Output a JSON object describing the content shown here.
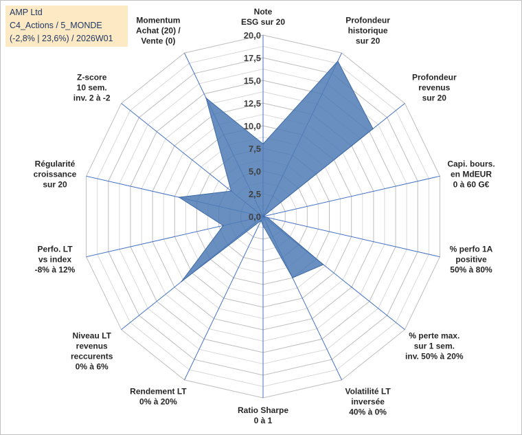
{
  "info": {
    "line1": "AMP Ltd",
    "line2": "C4_Actions / 5_MONDE",
    "line3": "(-2,8% | 23,6%) / 2026W01"
  },
  "colors": {
    "fill": "#4f7bb5",
    "stroke": "#3d6aa6",
    "grid": "#c8c8c8",
    "spoke": "#4472c4"
  },
  "chart_data": {
    "type": "radar",
    "range": [
      0,
      20
    ],
    "ticks": [
      "0,0",
      "2,5",
      "5,0",
      "7,5",
      "10,0",
      "12,5",
      "15,0",
      "17,5",
      "20,0"
    ],
    "axes": [
      [
        "Note",
        "ESG sur 20"
      ],
      [
        "Profondeur",
        "historique",
        "sur 20"
      ],
      [
        "Profondeur",
        "revenus",
        "sur 20"
      ],
      [
        "Capi. bours.",
        "en MdEUR",
        "0 à 60 G€"
      ],
      [
        "% perfo 1A",
        "positive",
        "50% à 80%"
      ],
      [
        "% perte max.",
        "sur 1 sem.",
        "inv. 50% à 20%"
      ],
      [
        "Volatilité LT",
        "inversée",
        "40% à 0%"
      ],
      [
        "Ratio Sharpe",
        "0 à 1"
      ],
      [
        "Rendement LT",
        "0% à 20%"
      ],
      [
        "Niveau LT",
        "revenus",
        "reccurents",
        "0% à 6%"
      ],
      [
        "Perfo. LT",
        "vs index",
        "-8% à 12%"
      ],
      [
        "Régularité",
        "croissance",
        "sur 20"
      ],
      [
        "Z-score",
        "10 sem.",
        "inv. 2 à -2"
      ],
      [
        "Momentum",
        "Achat (20) /",
        "Vente (0)"
      ]
    ],
    "series": [
      {
        "values": [
          8.0,
          19.0,
          15.5,
          0.0,
          0.5,
          8.5,
          7.5,
          1.0,
          0.5,
          11.5,
          4.5,
          9.5,
          4.5,
          14.5
        ]
      }
    ]
  }
}
